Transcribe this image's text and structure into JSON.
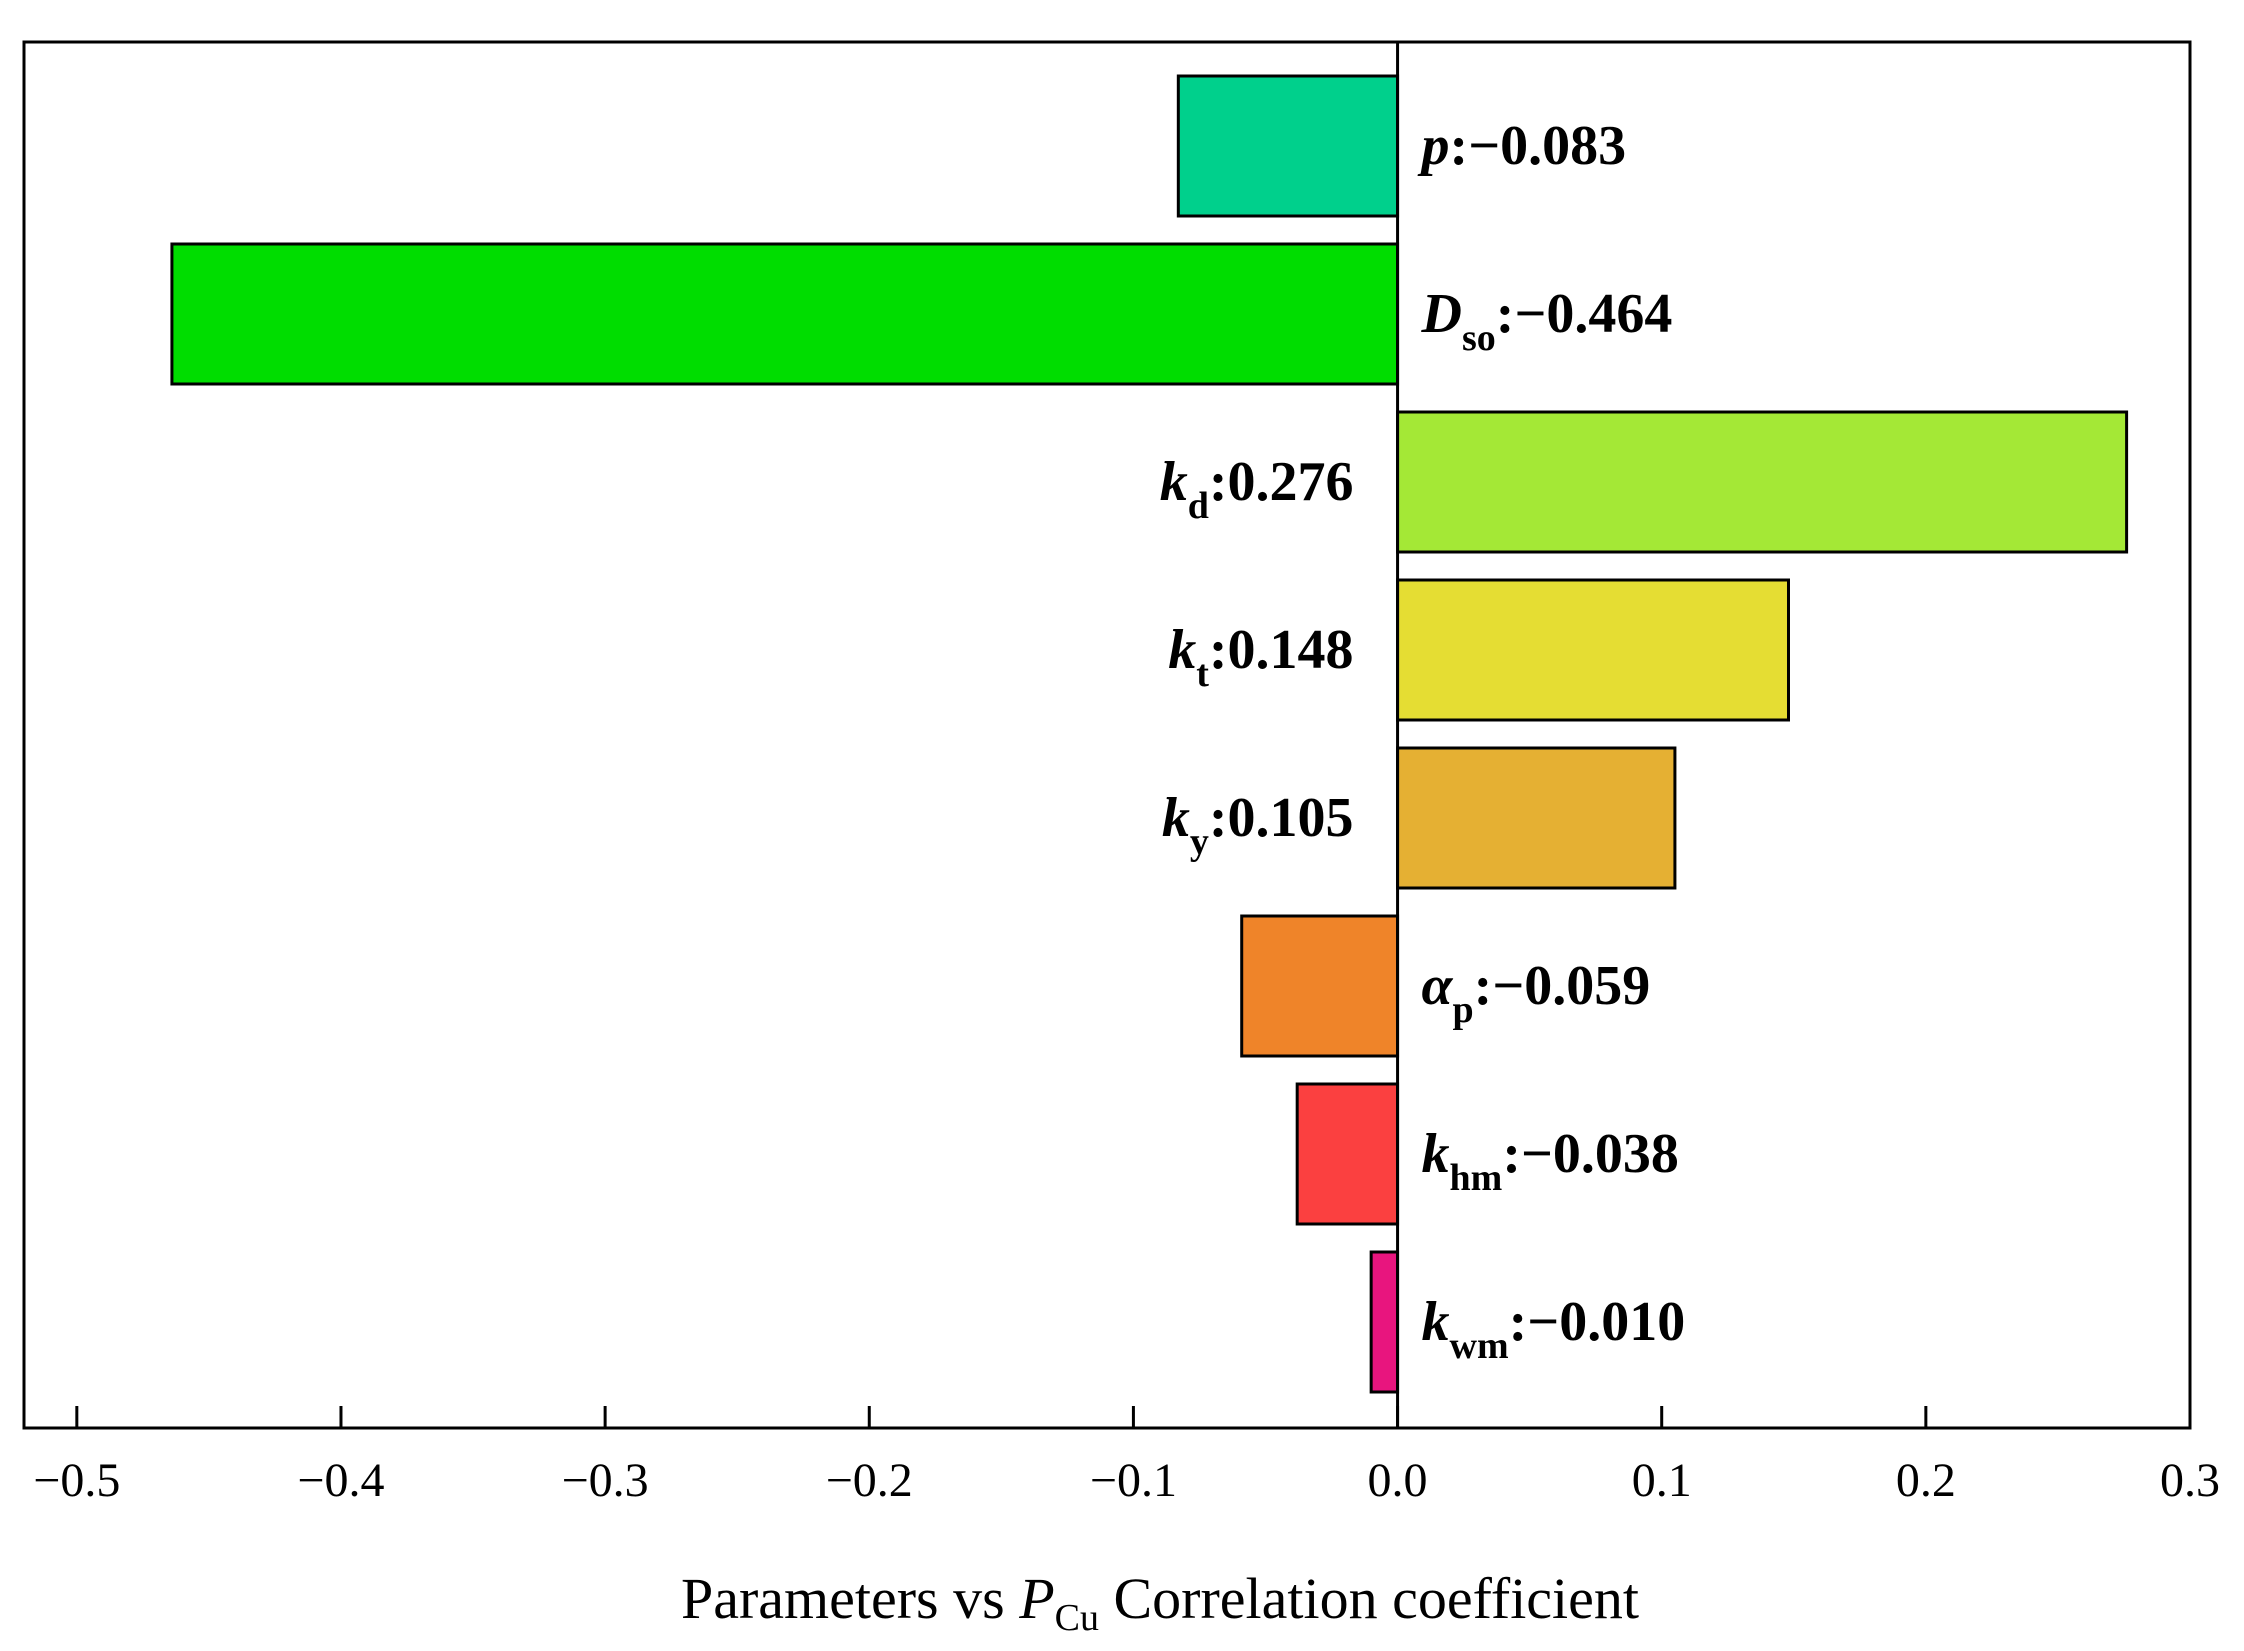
{
  "chart_data": {
    "type": "bar",
    "orientation": "horizontal",
    "title": "",
    "xlabel": {
      "prefix": "Parameters vs ",
      "symbol": "P",
      "subscript": "Cu",
      "suffix": " Correlation coefficient"
    },
    "ylabel": "",
    "xlim": [
      -0.52,
      0.3
    ],
    "xticks": [
      -0.5,
      -0.4,
      -0.3,
      -0.2,
      -0.1,
      0.0,
      0.1,
      0.2,
      0.3
    ],
    "xtick_labels": [
      "−0.5",
      "−0.4",
      "−0.3",
      "−0.2",
      "−0.1",
      "0.0",
      "0.1",
      "0.2",
      "0.3"
    ],
    "grid": false,
    "bars": [
      {
        "symbol": "p",
        "subscript": "",
        "value": -0.083,
        "label_value": "−0.083",
        "color": "#00d08c"
      },
      {
        "symbol": "D",
        "subscript": "so",
        "value": -0.464,
        "label_value": "−0.464",
        "color": "#00dd00"
      },
      {
        "symbol": "k",
        "subscript": "d",
        "value": 0.276,
        "label_value": "0.276",
        "color": "#a4e836"
      },
      {
        "symbol": "k",
        "subscript": "t",
        "value": 0.148,
        "label_value": "0.148",
        "color": "#e5dd33"
      },
      {
        "symbol": "k",
        "subscript": "y",
        "value": 0.105,
        "label_value": "0.105",
        "color": "#e5b033"
      },
      {
        "symbol": "α",
        "subscript": "p",
        "value": -0.059,
        "label_value": "−0.059",
        "color": "#ef8429"
      },
      {
        "symbol": "k",
        "subscript": "hm",
        "value": -0.038,
        "label_value": "−0.038",
        "color": "#fb4040"
      },
      {
        "symbol": "k",
        "subscript": "wm",
        "value": -0.01,
        "label_value": "−0.010",
        "color": "#e8157e"
      }
    ]
  }
}
